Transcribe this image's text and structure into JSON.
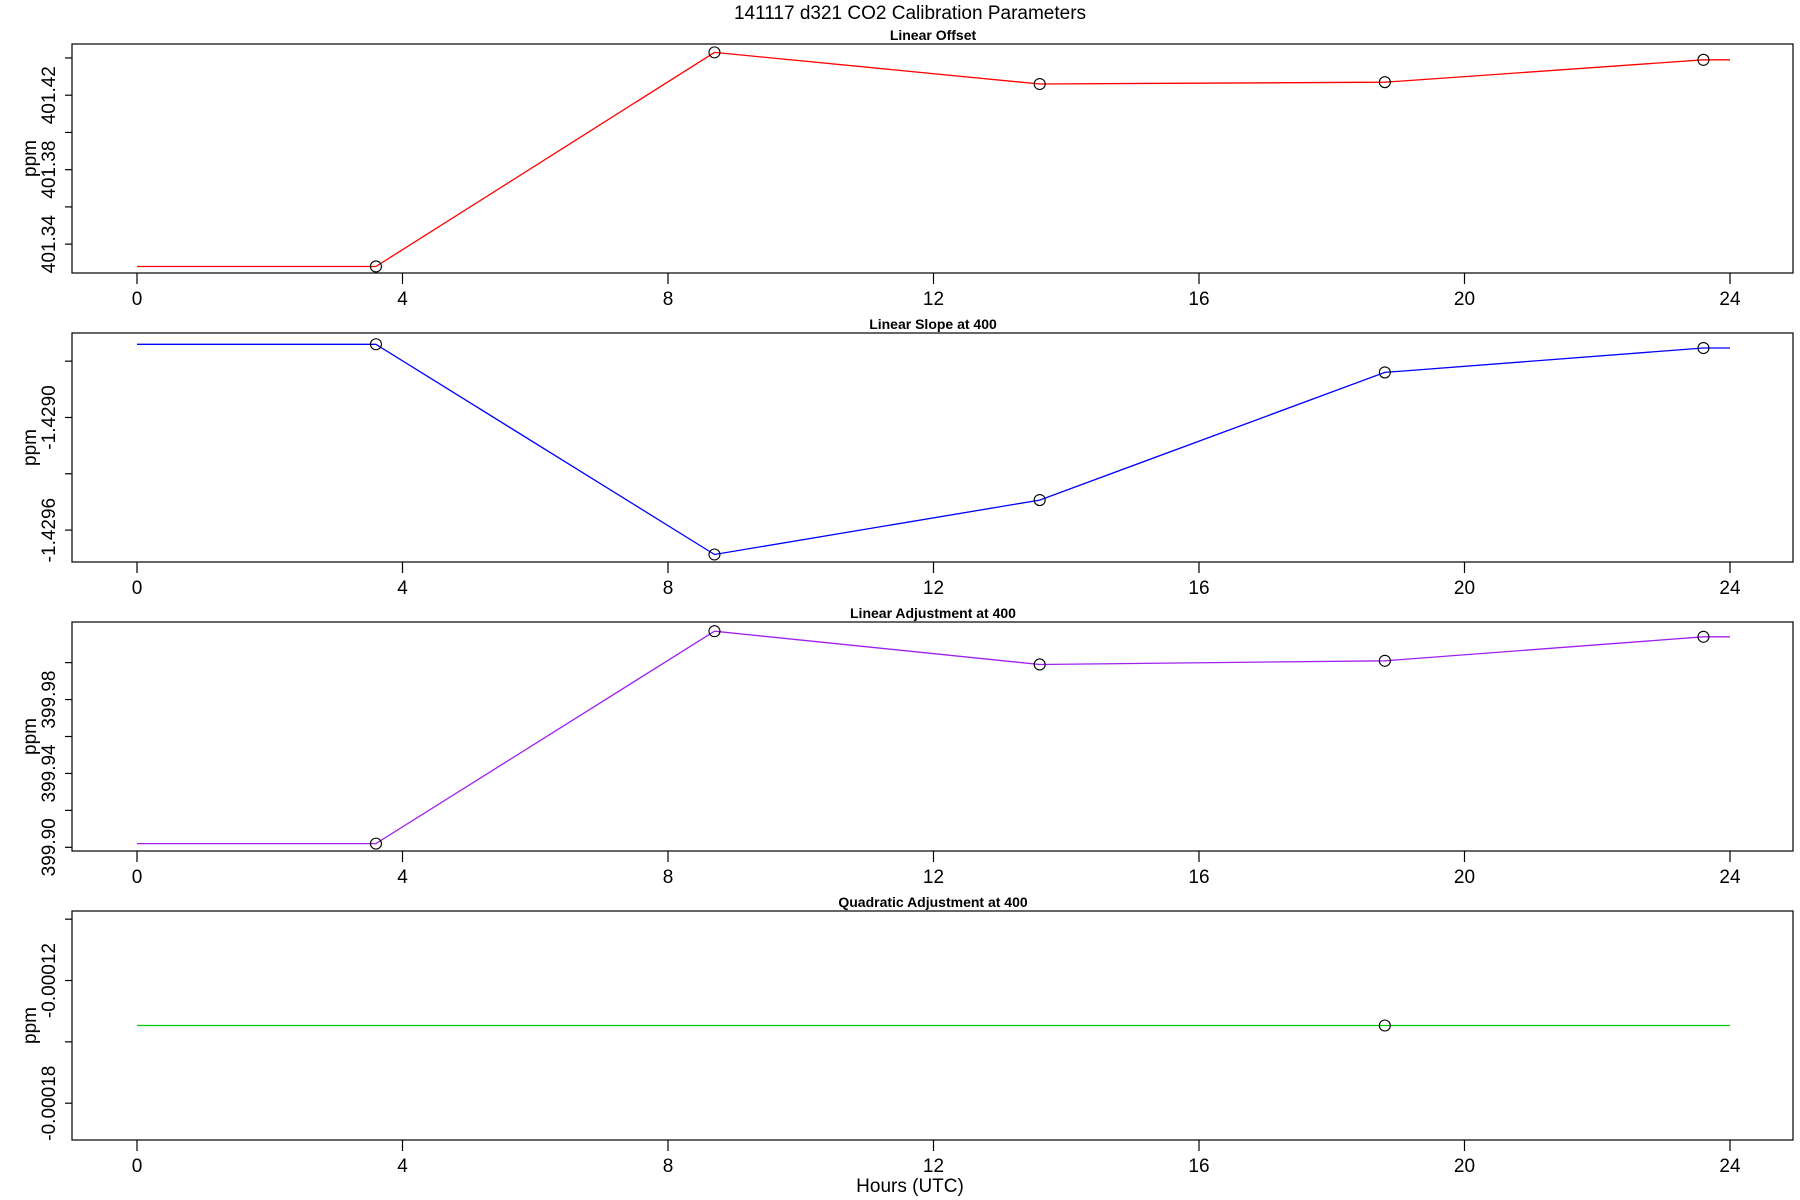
{
  "title": "141117   d321   CO2 Calibration Parameters",
  "xlabel": "Hours (UTC)",
  "chart_data": [
    {
      "type": "line",
      "title": "Linear Offset",
      "ylabel": "ppm",
      "color": "#ff0000",
      "x": [
        0,
        3.6,
        8.7,
        13.6,
        18.8,
        23.6,
        24
      ],
      "values": [
        401.328,
        401.328,
        401.443,
        401.426,
        401.427,
        401.439,
        401.439
      ],
      "points_x": [
        3.6,
        8.7,
        13.6,
        18.8,
        23.6
      ],
      "points_y": [
        401.328,
        401.443,
        401.426,
        401.427,
        401.439
      ],
      "xlim": [
        0,
        24
      ],
      "xticks": [
        0,
        4,
        8,
        12,
        16,
        20,
        24
      ],
      "yticks": [
        401.34,
        401.38,
        401.42
      ],
      "ytick_labels": [
        "401.34",
        "401.38",
        "401.42"
      ],
      "ylim": [
        401.3245,
        401.4475
      ],
      "grid": false
    },
    {
      "type": "line",
      "title": "Linear Slope at 400",
      "ylabel": "ppm",
      "color": "#0000ff",
      "x": [
        0,
        3.6,
        8.7,
        13.6,
        18.8,
        23.6,
        24
      ],
      "values": [
        -1.42861,
        -1.42861,
        -1.42973,
        -1.42944,
        -1.42876,
        -1.42863,
        -1.42863
      ],
      "points_x": [
        3.6,
        8.7,
        13.6,
        18.8,
        23.6
      ],
      "points_y": [
        -1.42861,
        -1.42973,
        -1.42944,
        -1.42876,
        -1.42863
      ],
      "xlim": [
        0,
        24
      ],
      "xticks": [
        0,
        4,
        8,
        12,
        16,
        20,
        24
      ],
      "yticks": [
        -1.4296,
        -1.429
      ],
      "ytick_labels": [
        "-1.4296",
        "-1.4290"
      ],
      "ylim": [
        -1.42977,
        -1.42855
      ],
      "grid": false
    },
    {
      "type": "line",
      "title": "Linear Adjustment at 400",
      "ylabel": "ppm",
      "color": "#a020f0",
      "x": [
        0,
        3.6,
        8.7,
        13.6,
        18.8,
        23.6,
        24
      ],
      "values": [
        399.902,
        399.902,
        400.017,
        399.999,
        400.001,
        400.014,
        400.014
      ],
      "points_x": [
        3.6,
        8.7,
        13.6,
        18.8,
        23.6
      ],
      "points_y": [
        399.902,
        400.017,
        399.999,
        400.001,
        400.014
      ],
      "xlim": [
        0,
        24
      ],
      "xticks": [
        0,
        4,
        8,
        12,
        16,
        20,
        24
      ],
      "yticks": [
        399.9,
        399.94,
        399.98
      ],
      "ytick_labels": [
        "399.90",
        "399.94",
        "399.98"
      ],
      "ylim": [
        399.898,
        400.022
      ],
      "grid": false
    },
    {
      "type": "line",
      "title": "Quadratic Adjustment at 400",
      "ylabel": "ppm",
      "color": "#00cc00",
      "x": [
        0,
        18.8,
        24
      ],
      "values": [
        -0.000142,
        -0.000142,
        -0.000142
      ],
      "points_x": [
        18.8
      ],
      "points_y": [
        -0.000142
      ],
      "xlim": [
        0,
        24
      ],
      "xticks": [
        0,
        4,
        8,
        12,
        16,
        20,
        24
      ],
      "yticks": [
        -0.00018,
        -0.00012
      ],
      "ytick_labels": [
        "-0.00018",
        "-0.00012"
      ],
      "ylim": [
        -0.000198,
        -8.6e-05
      ],
      "grid": false
    }
  ]
}
